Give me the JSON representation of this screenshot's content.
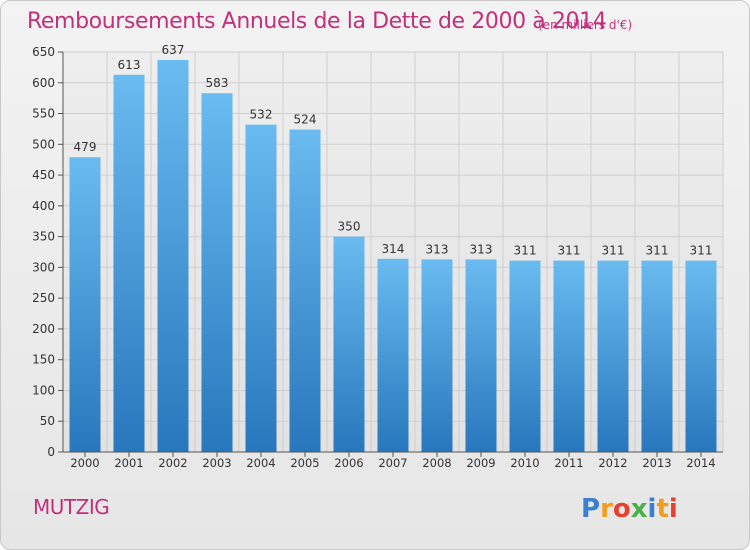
{
  "header": {
    "title": "Remboursements Annuels de la Dette de 2000 à 2014",
    "unit": "(en milliers d'€)"
  },
  "footer": {
    "city": "MUTZIG",
    "logo_text": "Proxiti"
  },
  "colors": {
    "title": "#c2307b",
    "bar_light": "#66b8ef",
    "bar_dark": "#2a7fc4",
    "grid": "#cfcfcf"
  },
  "chart_data": {
    "type": "bar",
    "categories": [
      "2000",
      "2001",
      "2002",
      "2003",
      "2004",
      "2005",
      "2006",
      "2007",
      "2008",
      "2009",
      "2010",
      "2011",
      "2012",
      "2013",
      "2014"
    ],
    "values": [
      479,
      613,
      637,
      583,
      532,
      524,
      350,
      314,
      313,
      313,
      311,
      311,
      311,
      311,
      311
    ],
    "ylim": [
      0,
      650
    ],
    "yticks": [
      0,
      50,
      100,
      150,
      200,
      250,
      300,
      350,
      400,
      450,
      500,
      550,
      600,
      650
    ],
    "grid": true
  }
}
